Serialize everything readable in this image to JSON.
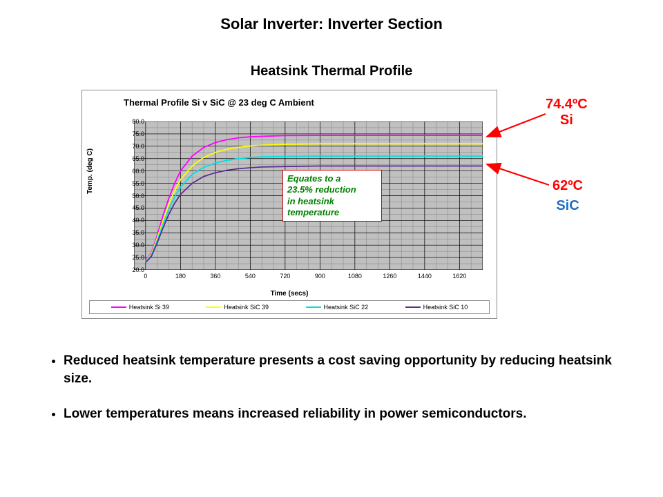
{
  "title": "Solar Inverter: Inverter Section",
  "subtitle": "Heatsink Thermal Profile",
  "chart": {
    "type": "line",
    "title": "Thermal Profile Si v SiC @ 23 deg C Ambient",
    "xlabel": "Time (secs)",
    "ylabel": "Temp. (deg C)",
    "background_color": "#c0c0c0",
    "grid_color": "#808080",
    "xlim": [
      -60,
      1740
    ],
    "ylim": [
      20,
      80
    ],
    "xticks": [
      0,
      180,
      360,
      540,
      720,
      900,
      1080,
      1260,
      1440,
      1620
    ],
    "yticks": [
      20.0,
      25.0,
      30.0,
      35.0,
      40.0,
      45.0,
      50.0,
      55.0,
      60.0,
      65.0,
      70.0,
      75.0,
      80.0
    ],
    "ytick_labels": [
      "20.0",
      "25.0",
      "30.0",
      "35.0",
      "40.0",
      "45.0",
      "50.0",
      "55.0",
      "60.0",
      "65.0",
      "70.0",
      "75.0",
      "80.0"
    ],
    "x_minor_step": 60,
    "y_minor_step": 2.5,
    "line_width": 1.8,
    "series": [
      {
        "name": "Heatsink Si 39",
        "color": "#ff00ff",
        "points": [
          [
            0,
            23.5
          ],
          [
            30,
            27
          ],
          [
            60,
            34
          ],
          [
            90,
            42
          ],
          [
            120,
            49
          ],
          [
            150,
            55
          ],
          [
            180,
            60
          ],
          [
            240,
            66
          ],
          [
            300,
            69.5
          ],
          [
            360,
            71.5
          ],
          [
            420,
            72.7
          ],
          [
            480,
            73.4
          ],
          [
            540,
            73.8
          ],
          [
            600,
            74.0
          ],
          [
            720,
            74.3
          ],
          [
            900,
            74.4
          ],
          [
            1080,
            74.4
          ],
          [
            1260,
            74.4
          ],
          [
            1440,
            74.4
          ],
          [
            1620,
            74.4
          ],
          [
            1740,
            74.4
          ]
        ]
      },
      {
        "name": "Heatsink SiC 39",
        "color": "#ffff00",
        "points": [
          [
            0,
            23.3
          ],
          [
            30,
            26.5
          ],
          [
            60,
            33
          ],
          [
            90,
            40
          ],
          [
            120,
            46.5
          ],
          [
            150,
            52
          ],
          [
            180,
            56.5
          ],
          [
            240,
            62
          ],
          [
            300,
            65.5
          ],
          [
            360,
            67.5
          ],
          [
            420,
            68.8
          ],
          [
            480,
            69.6
          ],
          [
            540,
            70.1
          ],
          [
            600,
            70.4
          ],
          [
            720,
            70.8
          ],
          [
            900,
            71.0
          ],
          [
            1080,
            71.0
          ],
          [
            1260,
            71.0
          ],
          [
            1440,
            71.0
          ],
          [
            1620,
            71.0
          ],
          [
            1740,
            71.0
          ]
        ]
      },
      {
        "name": "Heatsink SiC 22",
        "color": "#00e0e0",
        "points": [
          [
            0,
            23.2
          ],
          [
            30,
            26
          ],
          [
            60,
            32
          ],
          [
            90,
            38.5
          ],
          [
            120,
            44.5
          ],
          [
            150,
            49.5
          ],
          [
            180,
            53.5
          ],
          [
            240,
            58.5
          ],
          [
            300,
            61.5
          ],
          [
            360,
            63.2
          ],
          [
            420,
            64.3
          ],
          [
            480,
            65.0
          ],
          [
            540,
            65.4
          ],
          [
            600,
            65.7
          ],
          [
            720,
            65.9
          ],
          [
            900,
            66.0
          ],
          [
            1080,
            66.0
          ],
          [
            1260,
            66.0
          ],
          [
            1440,
            66.0
          ],
          [
            1620,
            66.0
          ],
          [
            1740,
            66.0
          ]
        ]
      },
      {
        "name": "Heatsink SiC 10",
        "color": "#5b2d8e",
        "points": [
          [
            0,
            23.0
          ],
          [
            30,
            25.5
          ],
          [
            60,
            31
          ],
          [
            90,
            37
          ],
          [
            120,
            42.5
          ],
          [
            150,
            47
          ],
          [
            180,
            50.5
          ],
          [
            240,
            55
          ],
          [
            300,
            57.8
          ],
          [
            360,
            59.3
          ],
          [
            420,
            60.3
          ],
          [
            480,
            60.9
          ],
          [
            540,
            61.3
          ],
          [
            600,
            61.6
          ],
          [
            720,
            61.8
          ],
          [
            900,
            62.0
          ],
          [
            1080,
            62.0
          ],
          [
            1260,
            62.0
          ],
          [
            1440,
            62.0
          ],
          [
            1620,
            62.0
          ],
          [
            1740,
            62.0
          ]
        ]
      }
    ],
    "callout": {
      "text_lines": [
        "Equates to a",
        "23.5% reduction",
        "in heatsink",
        "temperature"
      ],
      "text_color": "#008000",
      "border_color": "#d00000"
    }
  },
  "annotations": {
    "si": {
      "line1": "74.4ºC",
      "line2": "Si",
      "color": "#ff0000"
    },
    "sic": {
      "line1": "62ºC",
      "line2": "SiC",
      "color1": "#ff0000",
      "color2": "#1f6fc4"
    }
  },
  "arrows": {
    "color": "#ff0000",
    "stroke_width": 2.2
  },
  "bullets": [
    "Reduced heatsink temperature presents a cost saving opportunity by reducing heatsink size.",
    "Lower temperatures means increased reliability in power semiconductors."
  ]
}
